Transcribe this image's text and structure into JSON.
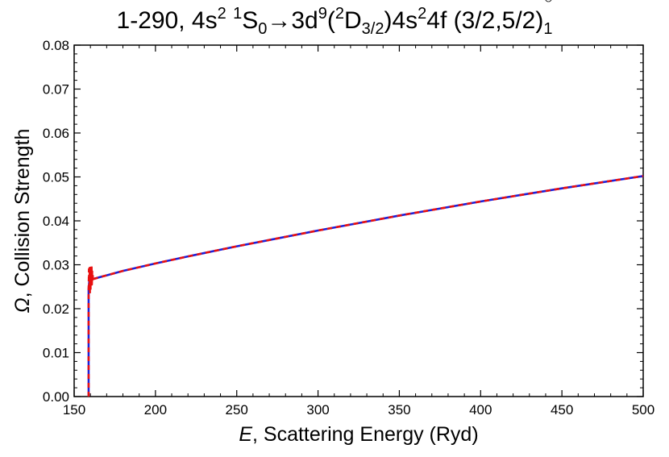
{
  "chart_data": {
    "type": "line",
    "title": {
      "prefix": "1-290, 4s",
      "sup1": "2",
      "space1": " ",
      "sup2": "1",
      "part2": "S",
      "sub1": "0",
      "arrow": "→",
      "part3": "3d",
      "sup3": "9",
      "part4": "(",
      "sup4": "2",
      "part5": "D",
      "sub2": "3/2",
      "part6": ")4s",
      "sup5": "2",
      "part7": "4f (3/2,5/2)",
      "sup6": "○",
      "sub3": "1"
    },
    "xlabel": {
      "italic": "E",
      "rest": ", Scattering Energy (Ryd)"
    },
    "ylabel": {
      "italic": "Ω",
      "rest": ", Collision Strength"
    },
    "xlim": [
      150,
      500
    ],
    "ylim": [
      0,
      0.08
    ],
    "xticks": [
      "150",
      "200",
      "250",
      "300",
      "350",
      "400",
      "450",
      "500"
    ],
    "yticks": [
      "0.00",
      "0.01",
      "0.02",
      "0.03",
      "0.04",
      "0.05",
      "0.06",
      "0.07",
      "0.08"
    ],
    "grid": false,
    "series": [
      {
        "color": "#1f1fd6",
        "style": "solid",
        "x": [
          158.9,
          158.9,
          159.3,
          160,
          170,
          180,
          200,
          220,
          250,
          275,
          300,
          325,
          350,
          375,
          400,
          425,
          450,
          475,
          500
        ],
        "y": [
          0,
          0.0245,
          0.0262,
          0.0266,
          0.0276,
          0.0286,
          0.0303,
          0.0319,
          0.0342,
          0.036,
          0.0378,
          0.0395,
          0.0412,
          0.0428,
          0.0444,
          0.0459,
          0.0474,
          0.0488,
          0.0502
        ]
      },
      {
        "color": "#e81010",
        "style": "dashed",
        "x": [
          158.9,
          158.9,
          159.1,
          159.3,
          159.5,
          159.7,
          159.9,
          160.1,
          160.3,
          160.5,
          160.7,
          160.9,
          161.1,
          161.3,
          161.5,
          161.8,
          162.2,
          170,
          180,
          200,
          220,
          250,
          275,
          300,
          325,
          350,
          375,
          400,
          425,
          450,
          475,
          500
        ],
        "y": [
          0,
          0.024,
          0.029,
          0.025,
          0.0295,
          0.0235,
          0.03,
          0.0245,
          0.028,
          0.0262,
          0.0298,
          0.0255,
          0.0285,
          0.026,
          0.0275,
          0.0266,
          0.0268,
          0.0276,
          0.0286,
          0.0303,
          0.0319,
          0.0342,
          0.036,
          0.0378,
          0.0395,
          0.0412,
          0.0428,
          0.0444,
          0.0459,
          0.0474,
          0.0488,
          0.0502
        ]
      }
    ]
  }
}
